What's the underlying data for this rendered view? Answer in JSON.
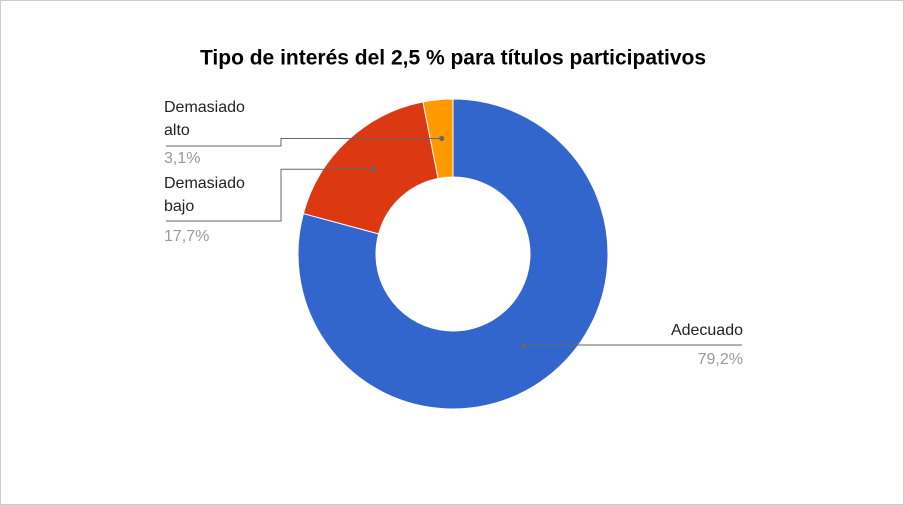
{
  "chart_data": {
    "type": "donut",
    "title": "Tipo de interés del 2,5 % para títulos participativos",
    "categories": [
      "Adecuado",
      "Demasiado bajo",
      "Demasiado alto"
    ],
    "values": [
      79.2,
      17.7,
      3.1
    ],
    "value_labels": [
      "79,2%",
      "17,7%",
      "3,1%"
    ],
    "colors": [
      "#3366cc",
      "#dc3912",
      "#ff9900"
    ]
  }
}
